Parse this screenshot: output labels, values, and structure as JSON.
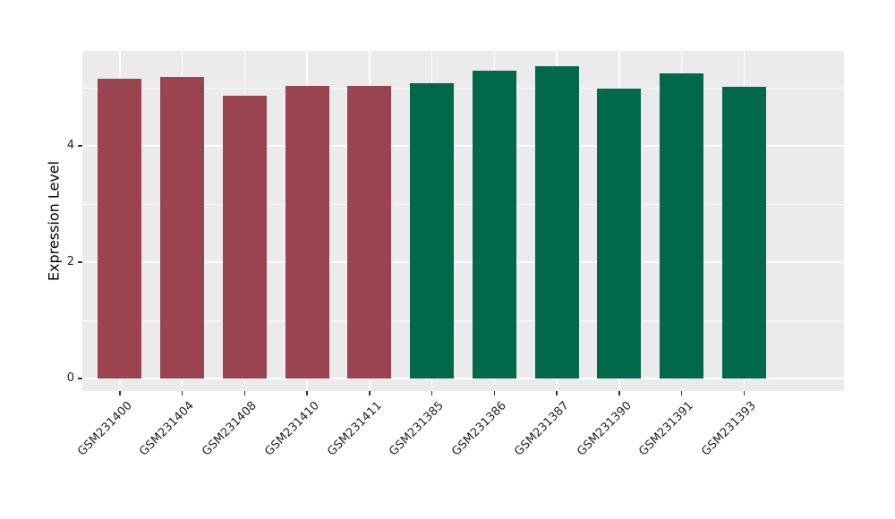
{
  "chart_data": {
    "type": "bar",
    "title": "",
    "xlabel": "",
    "ylabel": "Expression Level",
    "categories": [
      "GSM231400",
      "GSM231404",
      "GSM231408",
      "GSM231410",
      "GSM231411",
      "GSM231385",
      "GSM231386",
      "GSM231387",
      "GSM231390",
      "GSM231391",
      "GSM231393"
    ],
    "values": [
      5.16,
      5.18,
      4.86,
      5.03,
      5.03,
      5.08,
      5.29,
      5.37,
      4.99,
      5.25,
      5.01
    ],
    "bar_colors": [
      "#9A4450",
      "#9A4450",
      "#9A4450",
      "#9A4450",
      "#9A4450",
      "#00684B",
      "#00684B",
      "#00684B",
      "#00684B",
      "#00684B",
      "#00684B"
    ],
    "group_colors": {
      "left_group": "#9A4450",
      "right_group": "#00684B"
    },
    "yticks_major": [
      0,
      2,
      4
    ],
    "yticks_minor": [
      1,
      3,
      5
    ],
    "ytick_labels": [
      "0",
      "2",
      "4"
    ],
    "ylim": [
      -0.22,
      5.63
    ],
    "panel_background": "#EBEBEB",
    "grid_color": "#FFFFFF",
    "legend": "none",
    "grid": "on"
  }
}
